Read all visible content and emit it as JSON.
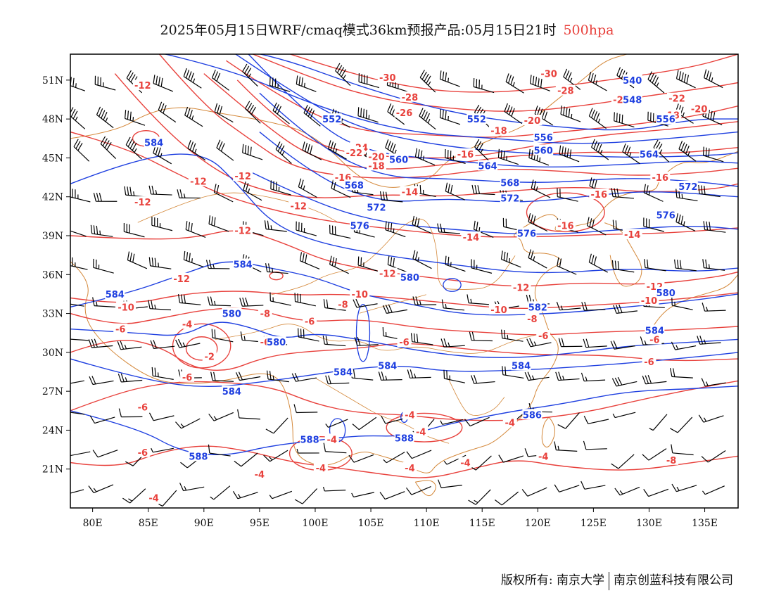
{
  "title": {
    "text": "2025年05月15日WRF/cmaq模式36km预报产品:05月15日21时",
    "level": "500hpa",
    "level_color": "#e8413c"
  },
  "axes": {
    "lon_labels": [
      "80E",
      "85E",
      "90E",
      "95E",
      "100E",
      "105E",
      "110E",
      "115E",
      "120E",
      "125E",
      "130E",
      "135E"
    ],
    "lon_values": [
      80,
      85,
      90,
      95,
      100,
      105,
      110,
      115,
      120,
      125,
      130,
      135
    ],
    "lat_labels": [
      "21N",
      "24N",
      "27N",
      "30N",
      "33N",
      "36N",
      "39N",
      "42N",
      "45N",
      "48N",
      "51N"
    ],
    "lat_values": [
      21,
      24,
      27,
      30,
      33,
      36,
      39,
      42,
      45,
      48,
      51
    ],
    "lon_range": [
      78,
      138
    ],
    "lat_range": [
      18,
      53
    ]
  },
  "colors": {
    "height_contour": "#1e3fe0",
    "temperature_contour": "#e8413c",
    "coastline": "#d4883a",
    "wind_barb": "#000000"
  },
  "height_labels": [
    {
      "text": "540",
      "lon": 128.5,
      "lat": 51.0
    },
    {
      "text": "548",
      "lon": 128.5,
      "lat": 49.5
    },
    {
      "text": "552",
      "lon": 101.5,
      "lat": 48.0
    },
    {
      "text": "552",
      "lon": 114.5,
      "lat": 48.0
    },
    {
      "text": "556",
      "lon": 131.5,
      "lat": 48.0
    },
    {
      "text": "556",
      "lon": 120.5,
      "lat": 46.6
    },
    {
      "text": "560",
      "lon": 107.5,
      "lat": 44.9
    },
    {
      "text": "560",
      "lon": 120.5,
      "lat": 45.6
    },
    {
      "text": "564",
      "lon": 115.5,
      "lat": 44.4
    },
    {
      "text": "564",
      "lon": 130.0,
      "lat": 45.3
    },
    {
      "text": "568",
      "lon": 103.5,
      "lat": 42.9
    },
    {
      "text": "568",
      "lon": 117.5,
      "lat": 43.1
    },
    {
      "text": "572",
      "lon": 105.5,
      "lat": 41.2
    },
    {
      "text": "572",
      "lon": 117.5,
      "lat": 41.9
    },
    {
      "text": "572",
      "lon": 133.5,
      "lat": 42.8
    },
    {
      "text": "576",
      "lon": 104.0,
      "lat": 39.8
    },
    {
      "text": "576",
      "lon": 119.0,
      "lat": 39.2
    },
    {
      "text": "576",
      "lon": 131.5,
      "lat": 40.6
    },
    {
      "text": "580",
      "lon": 108.5,
      "lat": 35.8
    },
    {
      "text": "580",
      "lon": 131.5,
      "lat": 34.6
    },
    {
      "text": "580",
      "lon": 92.5,
      "lat": 33.0
    },
    {
      "text": "580",
      "lon": 96.5,
      "lat": 30.8
    },
    {
      "text": "584",
      "lon": 85.5,
      "lat": 46.2
    },
    {
      "text": "584",
      "lon": 93.5,
      "lat": 36.8
    },
    {
      "text": "584",
      "lon": 82.0,
      "lat": 34.5
    },
    {
      "text": "584",
      "lon": 102.5,
      "lat": 28.5
    },
    {
      "text": "584",
      "lon": 106.5,
      "lat": 29.0
    },
    {
      "text": "584",
      "lon": 118.5,
      "lat": 29.0
    },
    {
      "text": "584",
      "lon": 130.5,
      "lat": 31.7
    },
    {
      "text": "584",
      "lon": 92.5,
      "lat": 27.0
    },
    {
      "text": "586",
      "lon": 119.5,
      "lat": 25.2
    },
    {
      "text": "588",
      "lon": 89.5,
      "lat": 22.0
    },
    {
      "text": "588",
      "lon": 99.5,
      "lat": 23.3
    },
    {
      "text": "588",
      "lon": 108.0,
      "lat": 23.4
    },
    {
      "text": "582",
      "lon": 120.0,
      "lat": 33.5
    }
  ],
  "temperature_labels": [
    {
      "text": "-12",
      "lon": 84.5,
      "lat": 50.6
    },
    {
      "text": "-30",
      "lon": 106.5,
      "lat": 51.2
    },
    {
      "text": "-30",
      "lon": 121.0,
      "lat": 51.5
    },
    {
      "text": "-28",
      "lon": 108.5,
      "lat": 49.7
    },
    {
      "text": "-28",
      "lon": 122.5,
      "lat": 50.2
    },
    {
      "text": "-26",
      "lon": 108.0,
      "lat": 48.5
    },
    {
      "text": "-24",
      "lon": 104.0,
      "lat": 45.8
    },
    {
      "text": "-24",
      "lon": 127.5,
      "lat": 49.5
    },
    {
      "text": "-22",
      "lon": 103.5,
      "lat": 45.4
    },
    {
      "text": "-22",
      "lon": 132.5,
      "lat": 49.6
    },
    {
      "text": "-20",
      "lon": 105.5,
      "lat": 45.1
    },
    {
      "text": "-20",
      "lon": 119.5,
      "lat": 47.9
    },
    {
      "text": "-20",
      "lon": 134.5,
      "lat": 48.8
    },
    {
      "text": "-18",
      "lon": 105.5,
      "lat": 44.4
    },
    {
      "text": "-18",
      "lon": 116.5,
      "lat": 47.1
    },
    {
      "text": "-18",
      "lon": 132.0,
      "lat": 48.3
    },
    {
      "text": "-16",
      "lon": 102.5,
      "lat": 43.5
    },
    {
      "text": "-16",
      "lon": 113.5,
      "lat": 45.3
    },
    {
      "text": "-16",
      "lon": 131.0,
      "lat": 43.5
    },
    {
      "text": "-16",
      "lon": 125.5,
      "lat": 42.2
    },
    {
      "text": "-16",
      "lon": 122.5,
      "lat": 39.8
    },
    {
      "text": "-14",
      "lon": 108.5,
      "lat": 42.4
    },
    {
      "text": "-14",
      "lon": 114.0,
      "lat": 38.9
    },
    {
      "text": "-14",
      "lon": 128.5,
      "lat": 39.1
    },
    {
      "text": "-12",
      "lon": 89.5,
      "lat": 43.2
    },
    {
      "text": "-12",
      "lon": 93.5,
      "lat": 43.6
    },
    {
      "text": "-12",
      "lon": 84.5,
      "lat": 41.6
    },
    {
      "text": "-12",
      "lon": 98.5,
      "lat": 41.3
    },
    {
      "text": "-12",
      "lon": 93.5,
      "lat": 39.4
    },
    {
      "text": "-12",
      "lon": 88.0,
      "lat": 35.7
    },
    {
      "text": "-12",
      "lon": 106.5,
      "lat": 36.1
    },
    {
      "text": "-12",
      "lon": 118.5,
      "lat": 35.0
    },
    {
      "text": "-12",
      "lon": 130.5,
      "lat": 35.1
    },
    {
      "text": "-10",
      "lon": 104.0,
      "lat": 34.5
    },
    {
      "text": "-10",
      "lon": 83.0,
      "lat": 33.5
    },
    {
      "text": "-10",
      "lon": 116.5,
      "lat": 33.3
    },
    {
      "text": "-10",
      "lon": 130.0,
      "lat": 34.0
    },
    {
      "text": "-8",
      "lon": 95.5,
      "lat": 33.0
    },
    {
      "text": "-8",
      "lon": 102.5,
      "lat": 33.7
    },
    {
      "text": "-8",
      "lon": 119.5,
      "lat": 32.6
    },
    {
      "text": "-6",
      "lon": 99.5,
      "lat": 32.4
    },
    {
      "text": "-6",
      "lon": 95.5,
      "lat": 30.8
    },
    {
      "text": "-6",
      "lon": 108.0,
      "lat": 30.8
    },
    {
      "text": "-6",
      "lon": 82.5,
      "lat": 31.8
    },
    {
      "text": "-6",
      "lon": 120.5,
      "lat": 31.3
    },
    {
      "text": "-6",
      "lon": 130.5,
      "lat": 31.0
    },
    {
      "text": "-6",
      "lon": 130.0,
      "lat": 29.3
    },
    {
      "text": "-4",
      "lon": 88.5,
      "lat": 32.2
    },
    {
      "text": "-4",
      "lon": 108.5,
      "lat": 25.2
    },
    {
      "text": "-4",
      "lon": 109.5,
      "lat": 23.9
    },
    {
      "text": "-4",
      "lon": 101.5,
      "lat": 23.3
    },
    {
      "text": "-4",
      "lon": 100.5,
      "lat": 21.1
    },
    {
      "text": "-4",
      "lon": 108.5,
      "lat": 21.1
    },
    {
      "text": "-4",
      "lon": 113.5,
      "lat": 21.5
    },
    {
      "text": "-4",
      "lon": 117.5,
      "lat": 24.6
    },
    {
      "text": "-4",
      "lon": 120.5,
      "lat": 22.0
    },
    {
      "text": "-4",
      "lon": 85.5,
      "lat": 18.8
    },
    {
      "text": "-4",
      "lon": 95.0,
      "lat": 20.6
    },
    {
      "text": "-2",
      "lon": 90.5,
      "lat": 29.7
    },
    {
      "text": "-6",
      "lon": 88.5,
      "lat": 28.1
    },
    {
      "text": "-6",
      "lon": 84.5,
      "lat": 25.8
    },
    {
      "text": "-6",
      "lon": 84.5,
      "lat": 22.3
    },
    {
      "text": "-8",
      "lon": 132.0,
      "lat": 21.7
    }
  ],
  "footer": {
    "left": "版权所有: 南京大学",
    "right": "南京创蓝科技有限公司"
  }
}
